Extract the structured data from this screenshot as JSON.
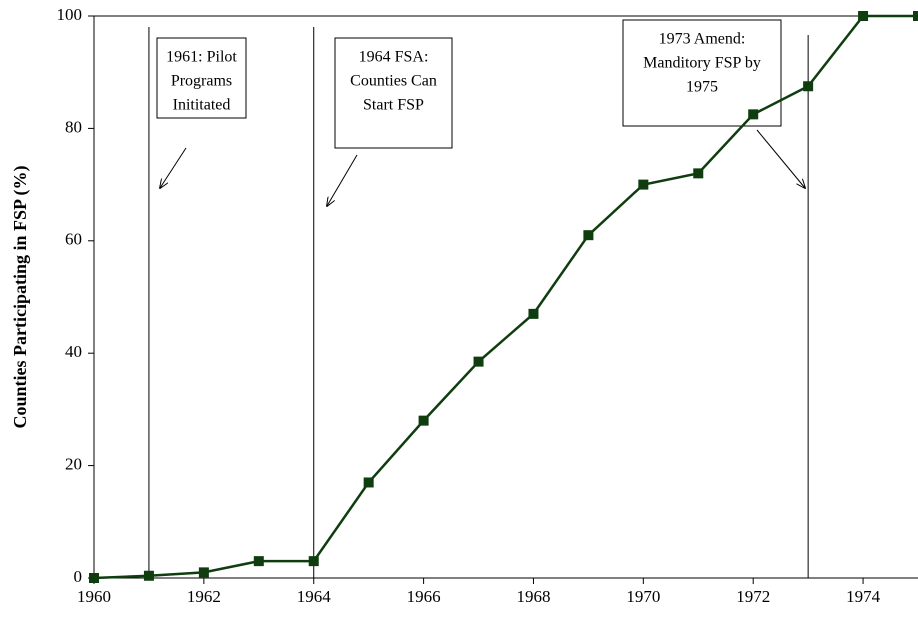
{
  "chart_data": {
    "type": "line",
    "y_label": "Counties Participating in FSP (%)",
    "x": [
      1960,
      1961,
      1962,
      1963,
      1964,
      1965,
      1966,
      1967,
      1968,
      1969,
      1970,
      1971,
      1972,
      1973,
      1974,
      1975
    ],
    "series": [
      {
        "color": "#0f3d0f",
        "values": [
          0,
          0.4,
          1,
          3,
          3,
          17,
          28,
          38.5,
          47,
          61,
          70,
          72,
          82.5,
          87.5,
          100,
          100
        ]
      }
    ],
    "xlim": [
      1960,
      1975
    ],
    "ylim": [
      0,
      100
    ],
    "xticks": [
      1960,
      1962,
      1964,
      1966,
      1968,
      1970,
      1972,
      1974
    ],
    "yticks": [
      0,
      20,
      40,
      60,
      80,
      100
    ],
    "annotations": [
      {
        "x": 1961,
        "lines": [
          "1961: Pilot",
          "Programs",
          "Inititated"
        ]
      },
      {
        "x": 1964,
        "lines": [
          "1964 FSA:",
          "Counties Can",
          "Start FSP"
        ]
      },
      {
        "x": 1973,
        "lines": [
          "1973 Amend:",
          "Manditory FSP by",
          "1975"
        ]
      }
    ]
  }
}
